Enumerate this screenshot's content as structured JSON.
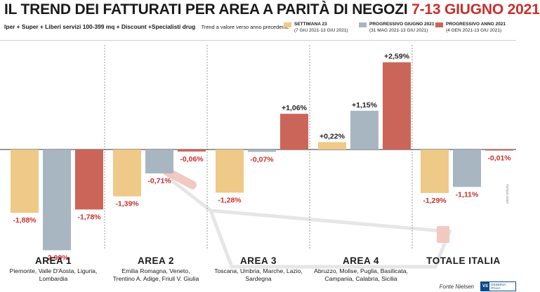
{
  "header": {
    "title": "IL TREND DEI FATTURATI PER AREA A PARITÀ DI NEGOZI",
    "date_range": "7-13 GIUGNO 2021",
    "subtitle": "Iper + Super + Liberi servizi 100-399 mq + Discount +Specialisti drug",
    "subtitle_note": "Trend a valore verso anno precedente"
  },
  "legend": [
    {
      "name": "SETTIMANA 23",
      "range": "(7 GIU 2021-13 GIU 2021)",
      "color": "#efc987"
    },
    {
      "name": "PROGRESSIVO GIUGNO 2021",
      "range": "(31 MAG 2021-13 GIU 2021)",
      "color": "#a8b6c1"
    },
    {
      "name": "PROGRESSIVO ANNO 2021",
      "range": "(4 GEN 2021-13 GIU 2021)",
      "color": "#cc6559"
    }
  ],
  "chart_data": {
    "type": "bar",
    "categories": [
      "AREA 1",
      "AREA 2",
      "AREA 3",
      "AREA 4",
      "TOTALE ITALIA"
    ],
    "category_regions": [
      [
        "Piemonte, Valle D'Aosta, Liguria,",
        "Lombardia"
      ],
      [
        "Emilia Romagna, Veneto,",
        "Trentino A. Adige, Friuli V. Giulia"
      ],
      [
        "Toscana, Umbria, Marche, Lazio,",
        "Sardegna"
      ],
      [
        "Abruzzo, Molise, Puglia, Basilicata,",
        "Campania, Calabria, Sicilia"
      ],
      []
    ],
    "series": [
      {
        "name": "SETTIMANA 23",
        "values": [
          -1.88,
          -1.39,
          -1.28,
          0.22,
          -1.29
        ],
        "labels": [
          "-1,88%",
          "-1,39%",
          "-1,28%",
          "+0,22%",
          "-1,29%"
        ],
        "color": "#efc987"
      },
      {
        "name": "PROGRESSIVO GIUGNO 2021",
        "values": [
          -2.99,
          -0.71,
          -0.07,
          1.15,
          -1.11
        ],
        "labels": [
          "-2,99%",
          "-0,71%",
          "-0,07%",
          "+1,15%",
          "-1,11%"
        ],
        "color": "#a8b6c1"
      },
      {
        "name": "PROGRESSIVO ANNO 2021",
        "values": [
          -1.78,
          -0.06,
          1.06,
          2.59,
          -0.01
        ],
        "labels": [
          "-1,78%",
          "-0,06%",
          "+1,06%",
          "+2,59%",
          "-0,01%"
        ],
        "color": "#cc6559"
      }
    ],
    "positive_label_color": "#222222",
    "negative_label_color": "#c9302c",
    "grid": false,
    "legend_position": "top-right"
  },
  "footer": {
    "source": "Fonte Nielsen",
    "brand_mark": "VS",
    "brand_text": "OSSERVA ITALIA",
    "side_credit": "GEDI VISUAL"
  }
}
